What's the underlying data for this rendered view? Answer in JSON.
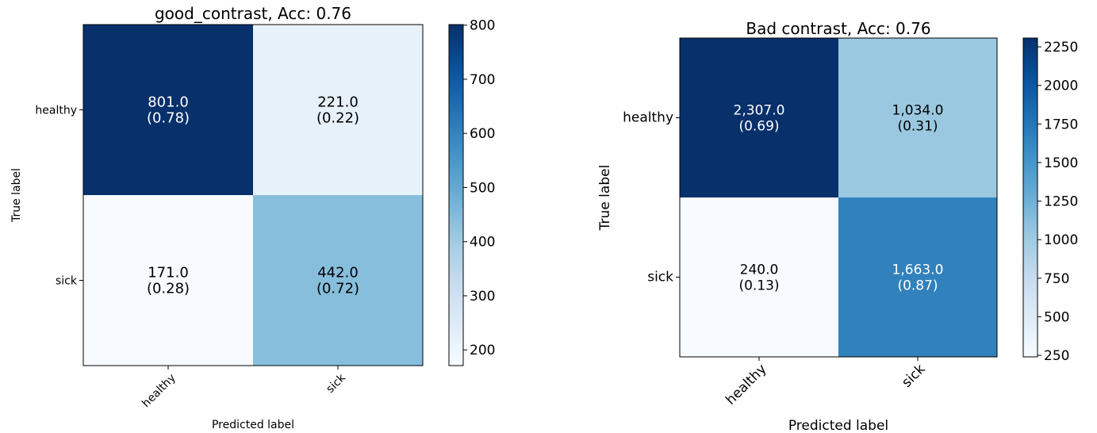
{
  "chart_data": [
    {
      "type": "heatmap",
      "title": "good_contrast, Acc: 0.76",
      "xlabel": "Predicted label",
      "ylabel": "True label",
      "x_categories": [
        "healthy",
        "sick"
      ],
      "y_categories": [
        "healthy",
        "sick"
      ],
      "values": [
        [
          801.0,
          221.0
        ],
        [
          171.0,
          442.0
        ]
      ],
      "cell_labels": [
        [
          {
            "count": "801.0",
            "ratio": "(0.78)"
          },
          {
            "count": "221.0",
            "ratio": "(0.22)"
          }
        ],
        [
          {
            "count": "171.0",
            "ratio": "(0.28)"
          },
          {
            "count": "442.0",
            "ratio": "(0.72)"
          }
        ]
      ],
      "colormap": "Blues",
      "colorbar": {
        "range": [
          171,
          801
        ],
        "ticks": [
          200,
          300,
          400,
          500,
          600,
          700,
          800
        ],
        "tick_labels": [
          "200",
          "300",
          "400",
          "500",
          "600",
          "700",
          "800"
        ]
      }
    },
    {
      "type": "heatmap",
      "title": "Bad contrast, Acc: 0.76",
      "xlabel": "Predicted label",
      "ylabel": "True label",
      "x_categories": [
        "healthy",
        "sick"
      ],
      "y_categories": [
        "healthy",
        "sick"
      ],
      "values": [
        [
          2307.0,
          1034.0
        ],
        [
          240.0,
          1663.0
        ]
      ],
      "cell_labels": [
        [
          {
            "count": "2,307.0",
            "ratio": "(0.69)"
          },
          {
            "count": "1,034.0",
            "ratio": "(0.31)"
          }
        ],
        [
          {
            "count": "240.0",
            "ratio": "(0.13)"
          },
          {
            "count": "1,663.0",
            "ratio": "(0.87)"
          }
        ]
      ],
      "colormap": "Blues",
      "colorbar": {
        "range": [
          240,
          2307
        ],
        "ticks": [
          250,
          500,
          750,
          1000,
          1250,
          1500,
          1750,
          2000,
          2250
        ],
        "tick_labels": [
          "250",
          "500",
          "750",
          "1000",
          "1250",
          "1500",
          "1750",
          "2000",
          "2250"
        ]
      }
    }
  ]
}
